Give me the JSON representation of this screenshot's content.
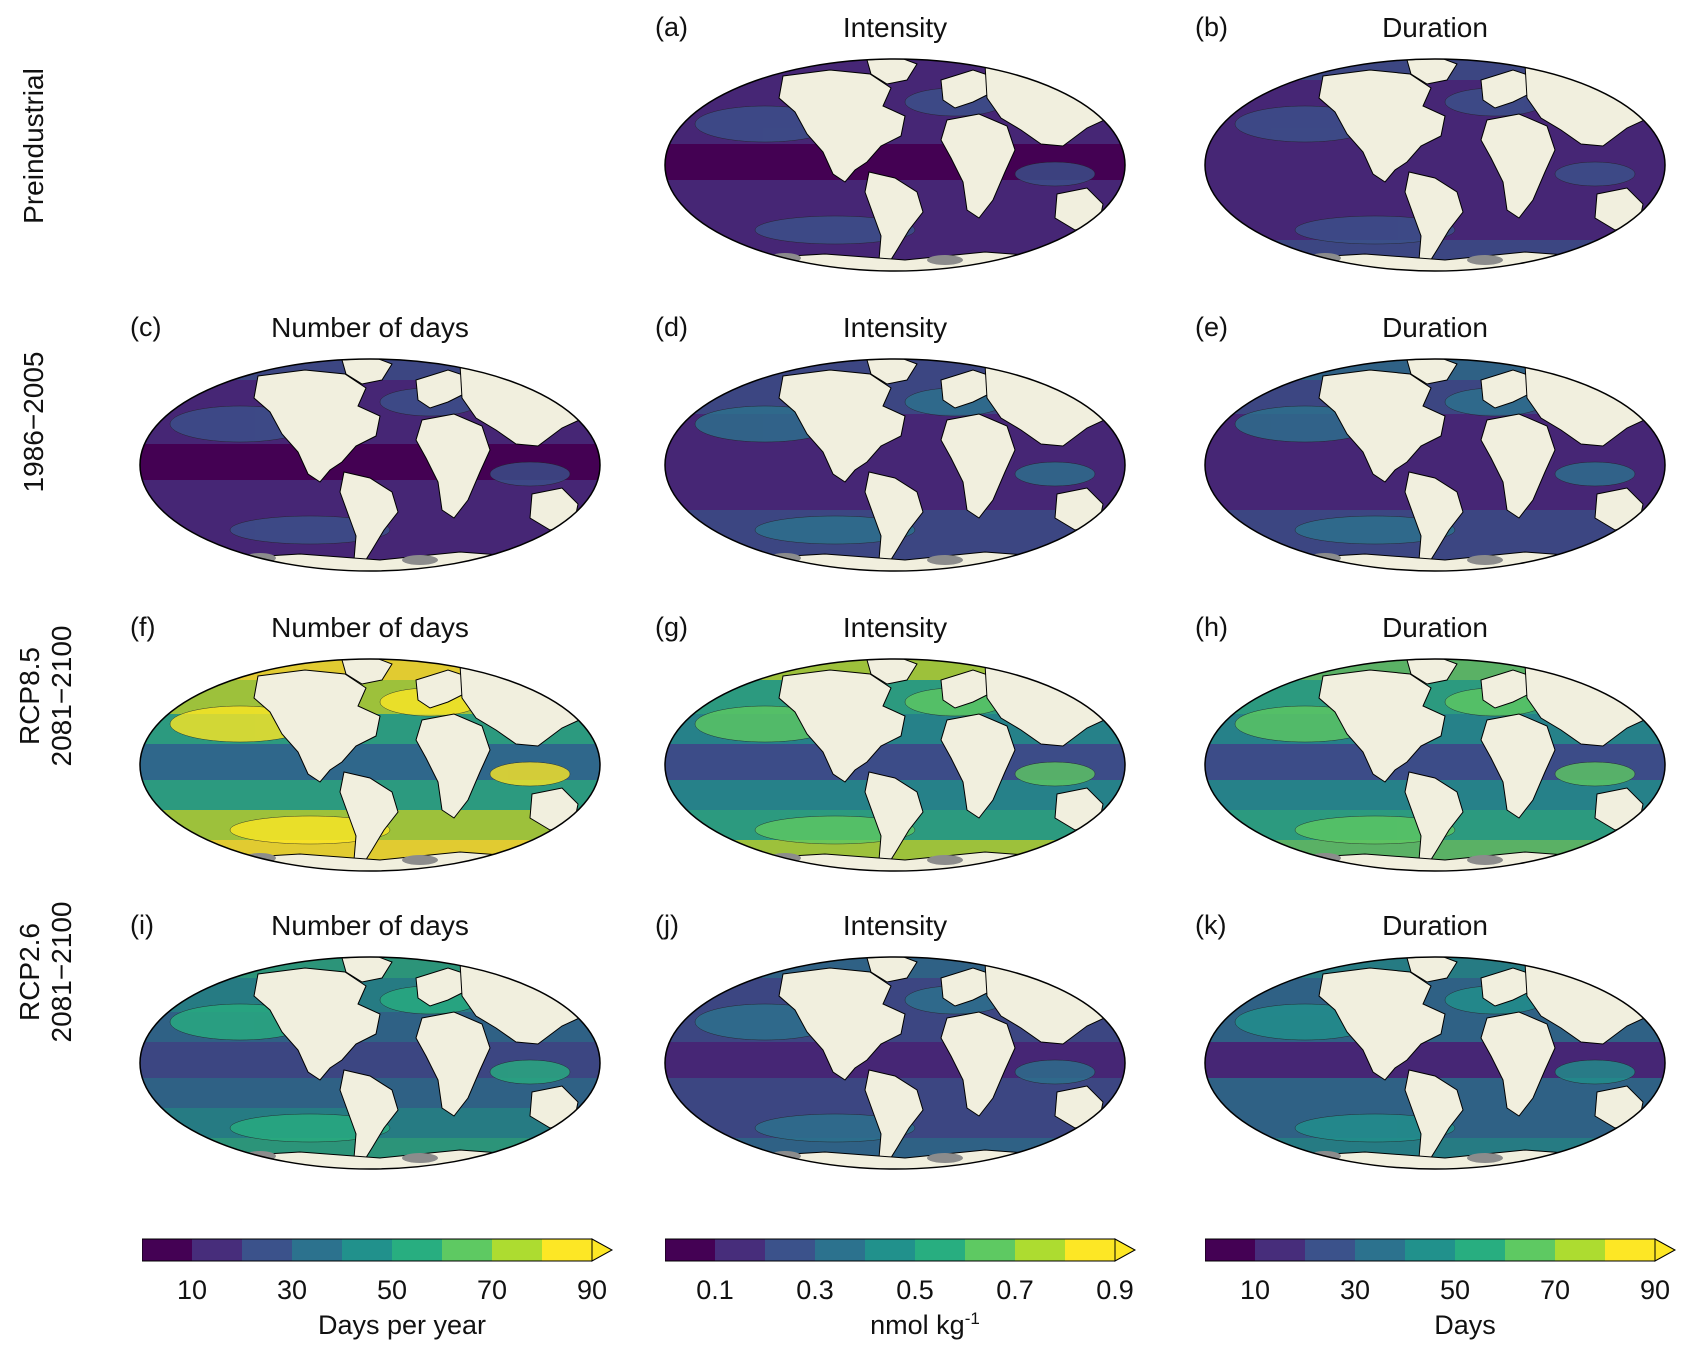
{
  "rows": [
    {
      "label_lines": [
        "Preindustrial"
      ]
    },
    {
      "label_lines": [
        "1986−2005"
      ]
    },
    {
      "label_lines": [
        "RCP8.5",
        "2081−2100"
      ]
    },
    {
      "label_lines": [
        "RCP2.6",
        "2081−2100"
      ]
    }
  ],
  "panels": [
    {
      "tag": "(a)",
      "title": "Intensity",
      "level": 0.1
    },
    {
      "tag": "(b)",
      "title": "Duration",
      "level": 0.15
    },
    {
      "tag": "(c)",
      "title": "Number of days",
      "level": 0.12
    },
    {
      "tag": "(d)",
      "title": "Intensity",
      "level": 0.18
    },
    {
      "tag": "(e)",
      "title": "Duration",
      "level": 0.2
    },
    {
      "tag": "(f)",
      "title": "Number of days",
      "level": 0.75
    },
    {
      "tag": "(g)",
      "title": "Intensity",
      "level": 0.55
    },
    {
      "tag": "(h)",
      "title": "Duration",
      "level": 0.5
    },
    {
      "tag": "(i)",
      "title": "Number of days",
      "level": 0.4
    },
    {
      "tag": "(j)",
      "title": "Intensity",
      "level": 0.25
    },
    {
      "tag": "(k)",
      "title": "Duration",
      "level": 0.35
    }
  ],
  "colorbars": [
    {
      "ticks": [
        "10",
        "30",
        "50",
        "70",
        "90"
      ],
      "label": "Days per year",
      "label_sup": ""
    },
    {
      "ticks": [
        "0.1",
        "0.3",
        "0.5",
        "0.7",
        "0.9"
      ],
      "label": "nmol kg",
      "label_sup": "-1"
    },
    {
      "ticks": [
        "10",
        "30",
        "50",
        "70",
        "90"
      ],
      "label": "Days",
      "label_sup": ""
    }
  ],
  "colors": {
    "palette": [
      "#440154",
      "#472d7b",
      "#3b528b",
      "#2c728e",
      "#21918c",
      "#28ae80",
      "#5ec962",
      "#addc30",
      "#fde725"
    ],
    "land": "#f1efde",
    "ice": "#8c8c8c",
    "outline": "#000000"
  }
}
